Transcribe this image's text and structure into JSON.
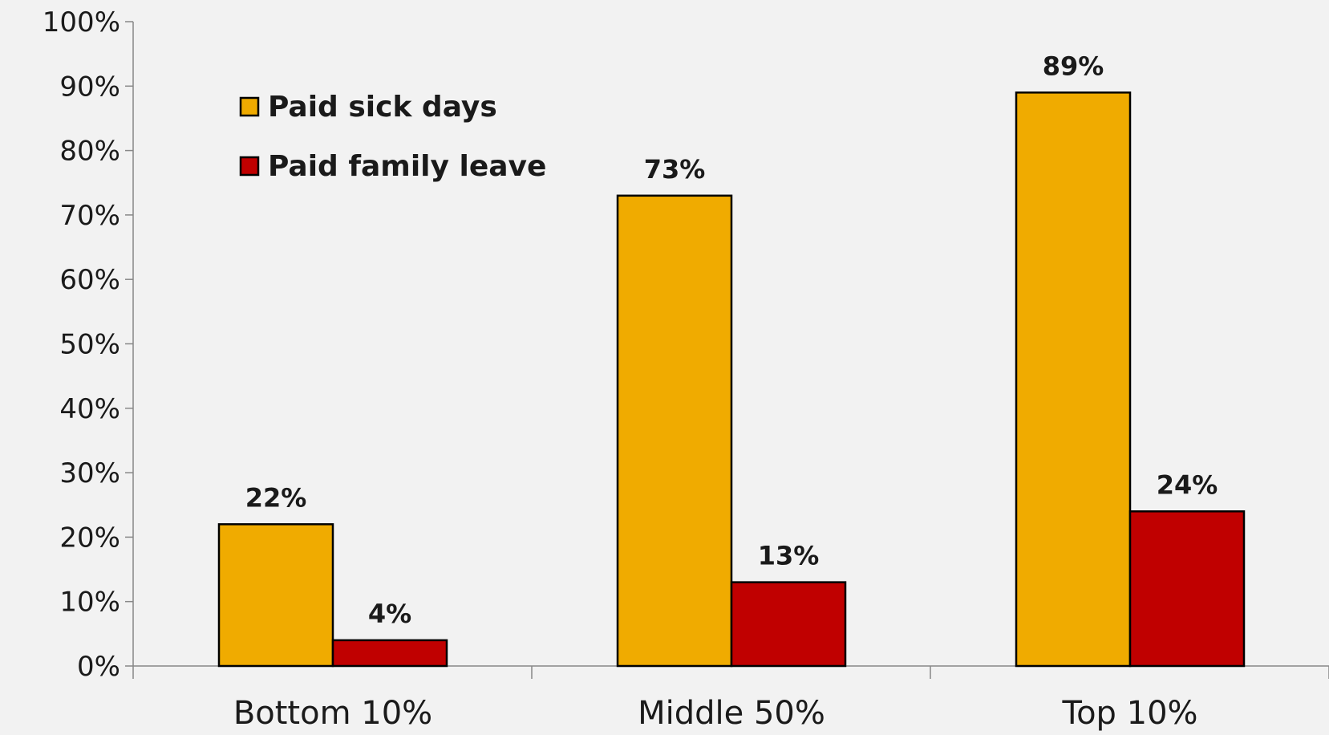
{
  "chart_data": {
    "type": "bar",
    "categories": [
      "Bottom 10%",
      "Middle 50%",
      "Top 10%"
    ],
    "series": [
      {
        "name": "Paid sick days",
        "values": [
          22,
          73,
          89
        ],
        "labels": [
          "22%",
          "73%",
          "89%"
        ],
        "color": "#f0ab00"
      },
      {
        "name": "Paid family leave",
        "values": [
          4,
          13,
          24
        ],
        "labels": [
          "4%",
          "13%",
          "24%"
        ],
        "color": "#c00000"
      }
    ],
    "ylim": [
      0,
      100
    ],
    "yticks": [
      "0%",
      "10%",
      "20%",
      "30%",
      "40%",
      "50%",
      "60%",
      "70%",
      "80%",
      "90%",
      "100%"
    ],
    "grid": false,
    "legend_position": "top-left",
    "title": "",
    "xlabel": "",
    "ylabel": ""
  }
}
